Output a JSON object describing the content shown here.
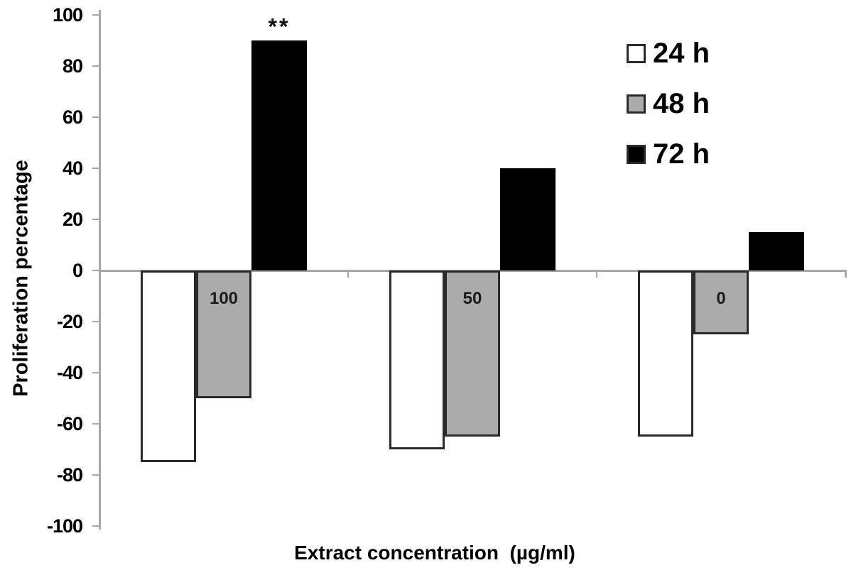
{
  "chart_data": {
    "type": "bar",
    "title": "",
    "xlabel": "Extract concentration  (µg/ml)",
    "ylabel": "Proliferation percentage",
    "categories": [
      "100",
      "50",
      "0"
    ],
    "series": [
      {
        "name": "24 h",
        "color": "#ffffff",
        "values": [
          -75,
          -70,
          -65
        ]
      },
      {
        "name": "48 h",
        "color": "#ababab",
        "values": [
          -50,
          -65,
          -25
        ]
      },
      {
        "name": "72 h",
        "color": "#000000",
        "values": [
          90,
          40,
          15
        ]
      }
    ],
    "ylim": [
      -100,
      100
    ],
    "ytick_step": 20,
    "grid": false,
    "legend_position": "top-right",
    "legend_labels": [
      "24 h",
      "48 h",
      "72 h"
    ],
    "category_labels_inside_series": "48 h",
    "annotations": [
      {
        "text": "**",
        "category": "100",
        "series": "72 h"
      }
    ],
    "axis_color": "#a8a8a8",
    "bar_border_color": "#2a2a2a"
  }
}
